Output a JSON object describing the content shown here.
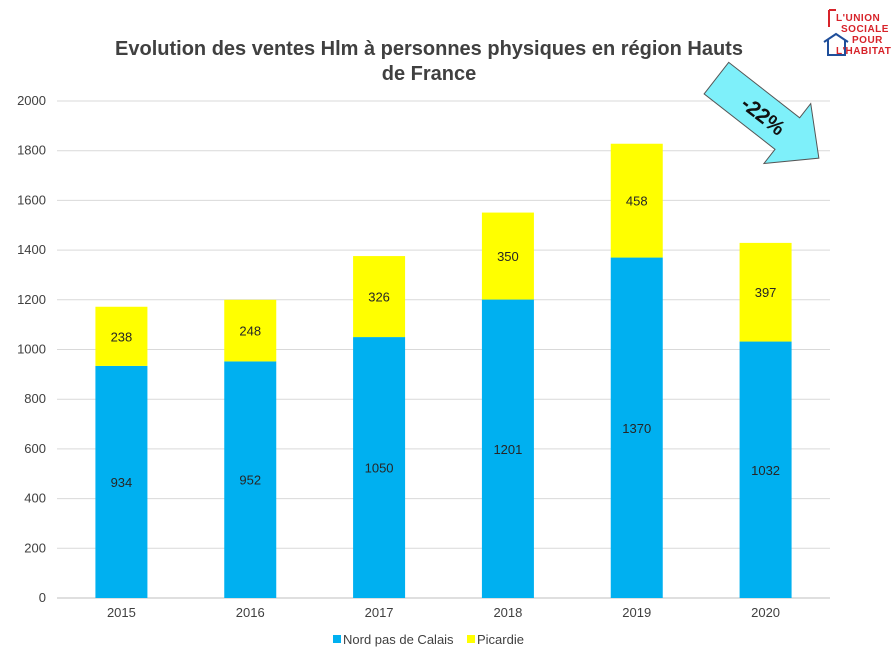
{
  "logo": {
    "lines": [
      "L'UNION",
      "SOCIALE",
      "POUR",
      "L'HABITAT"
    ],
    "color": "#d7232a",
    "roof_color": "#1f4e9a"
  },
  "annotation": {
    "text": "-22%",
    "color": "#7ef0fa"
  },
  "chart_data": {
    "type": "bar",
    "stacked": true,
    "title": "Evolution des ventes Hlm à personnes physiques en région Hauts de France",
    "title_lines": [
      "Evolution des ventes Hlm à personnes physiques en région Hauts",
      "de France"
    ],
    "categories": [
      "2015",
      "2016",
      "2017",
      "2018",
      "2019",
      "2020"
    ],
    "series": [
      {
        "name": "Nord pas de Calais",
        "values": [
          934,
          952,
          1050,
          1201,
          1370,
          1032
        ],
        "color": "#00b0f0"
      },
      {
        "name": "Picardie",
        "values": [
          238,
          248,
          326,
          350,
          458,
          397
        ],
        "color": "#ffff00"
      }
    ],
    "ylim": [
      0,
      2000
    ],
    "yticks": [
      0,
      200,
      400,
      600,
      800,
      1000,
      1200,
      1400,
      1600,
      1800,
      2000
    ],
    "grid": true,
    "legend_position": "bottom",
    "data_labels": true
  }
}
